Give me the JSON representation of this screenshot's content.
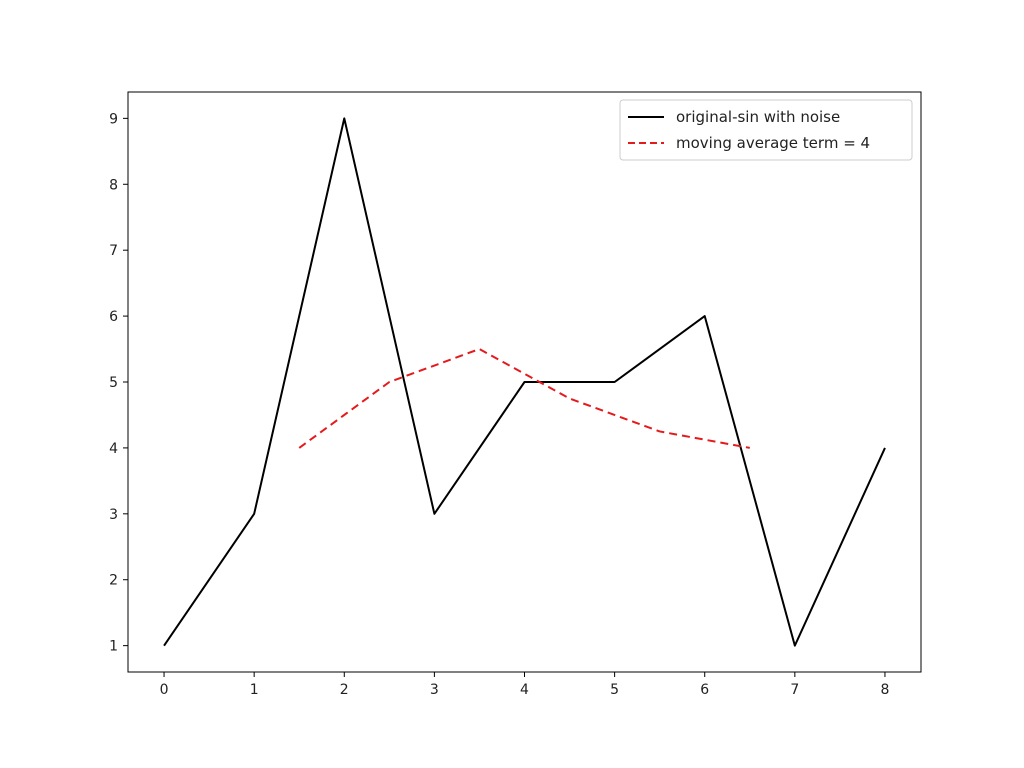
{
  "chart_data": {
    "type": "line",
    "title": "",
    "xlabel": "",
    "ylabel": "",
    "xlim": [
      -0.4,
      8.4
    ],
    "ylim": [
      0.6,
      9.4
    ],
    "xticks": [
      0,
      1,
      2,
      3,
      4,
      5,
      6,
      7,
      8
    ],
    "yticks": [
      1,
      2,
      3,
      4,
      5,
      6,
      7,
      8,
      9
    ],
    "grid": false,
    "legend_position": "top-right",
    "series": [
      {
        "name": "original-sin with noise",
        "color": "#000000",
        "style": "solid",
        "x": [
          0,
          1,
          2,
          3,
          4,
          5,
          6,
          7,
          8
        ],
        "y": [
          1,
          3,
          9,
          3,
          5,
          5,
          6,
          1,
          4
        ]
      },
      {
        "name": "moving average term = 4",
        "color": "#e41a1c",
        "style": "dashed",
        "x": [
          1.5,
          2.5,
          3.5,
          4.5,
          5.5,
          6.5
        ],
        "y": [
          4.0,
          5.0,
          5.5,
          4.75,
          4.25,
          4.0
        ]
      }
    ]
  }
}
